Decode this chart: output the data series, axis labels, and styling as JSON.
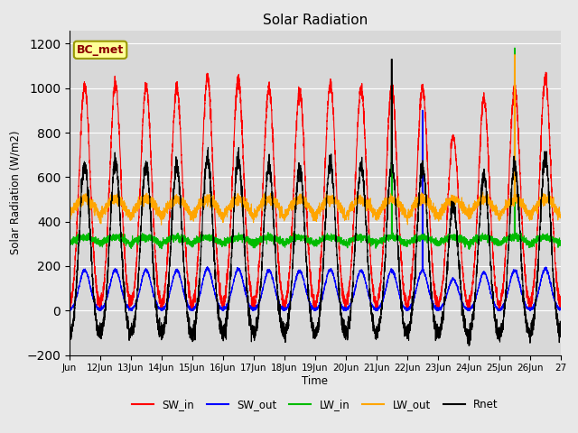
{
  "title": "Solar Radiation",
  "ylabel": "Solar Radiation (W/m2)",
  "xlabel": "Time",
  "ylim": [
    -200,
    1260
  ],
  "yticks": [
    -200,
    0,
    200,
    400,
    600,
    800,
    1000,
    1200
  ],
  "start_day": 11,
  "end_day": 27,
  "n_days": 16,
  "points_per_day": 288,
  "colors": {
    "SW_in": "#ff0000",
    "SW_out": "#0000ff",
    "LW_in": "#00bb00",
    "LW_out": "#ffa500",
    "Rnet": "#000000"
  },
  "legend_labels": [
    "SW_in",
    "SW_out",
    "LW_in",
    "LW_out",
    "Rnet"
  ],
  "bc_met_label": "BC_met",
  "fig_facecolor": "#e8e8e8",
  "ax_facecolor": "#d8d8d8",
  "grid_color": "#ffffff",
  "sw_in_peaks": [
    1010,
    1020,
    1010,
    1000,
    1050,
    1040,
    1000,
    990,
    1020,
    1000,
    1000,
    1000,
    780,
    950,
    1000,
    1050
  ],
  "lw_in_base": 300,
  "lw_out_base": 420,
  "night_rnet": -80,
  "sw_out_ratio": 0.18
}
